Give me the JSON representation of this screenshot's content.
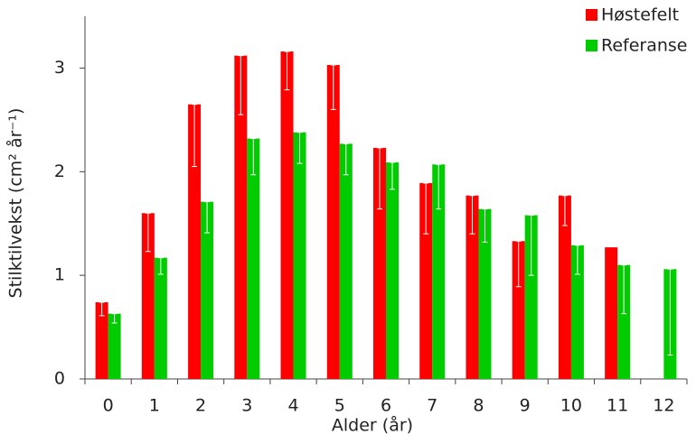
{
  "chart_data": {
    "type": "bar",
    "x_label": "Alder  (år)",
    "y_label": "Stilktilvekst  (cm² år⁻¹)",
    "categories": [
      "0",
      "1",
      "2",
      "3",
      "4",
      "5",
      "6",
      "7",
      "8",
      "9",
      "10",
      "11",
      "12"
    ],
    "series": [
      {
        "name": "Høstefelt",
        "color": "#ff0000",
        "values": [
          0.74,
          1.6,
          2.65,
          3.12,
          3.16,
          3.03,
          2.23,
          1.89,
          1.77,
          1.33,
          1.77,
          1.27,
          null
        ],
        "errors": [
          0.13,
          0.37,
          0.6,
          0.57,
          0.37,
          0.43,
          0.59,
          0.49,
          0.37,
          0.44,
          0.29,
          null,
          null
        ]
      },
      {
        "name": "Referanse",
        "color": "#00cc00",
        "values": [
          0.63,
          1.17,
          1.71,
          2.32,
          2.38,
          2.27,
          2.09,
          2.07,
          1.64,
          1.58,
          1.29,
          1.1,
          1.06
        ],
        "errors": [
          0.09,
          0.16,
          0.3,
          0.35,
          0.3,
          0.3,
          0.26,
          0.43,
          0.32,
          0.58,
          0.28,
          0.47,
          0.83
        ]
      }
    ],
    "ylim": [
      0,
      3.5
    ],
    "yticks": [
      0,
      1,
      2,
      3
    ],
    "legend": "top-right"
  }
}
